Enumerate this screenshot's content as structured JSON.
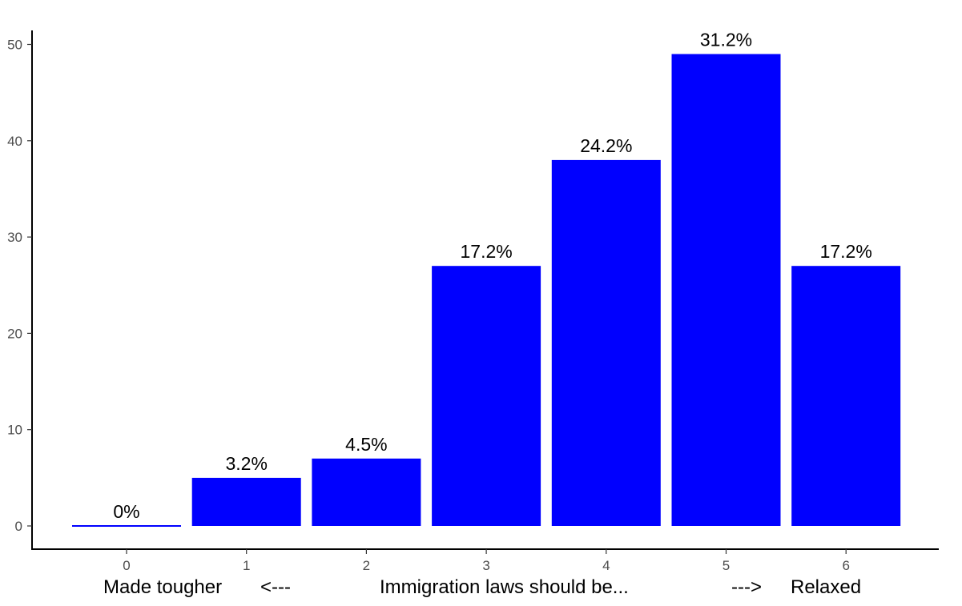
{
  "chart_data": {
    "type": "bar",
    "categories": [
      "0",
      "1",
      "2",
      "3",
      "4",
      "5",
      "6"
    ],
    "values": [
      0,
      5,
      7,
      27,
      38,
      49,
      27
    ],
    "data_labels": [
      "0%",
      "3.2%",
      "4.5%",
      "17.2%",
      "24.2%",
      "31.2%",
      "17.2%"
    ],
    "ylim": [
      0,
      50
    ],
    "yticks": [
      0,
      10,
      20,
      30,
      40,
      50
    ],
    "xlabel_parts": [
      "Made tougher",
      "<---",
      "Immigration laws should be...",
      "--->",
      "Relaxed"
    ],
    "ylabel": "",
    "title": "",
    "bar_color": "#0000ff",
    "grid": false,
    "legend": "none"
  }
}
